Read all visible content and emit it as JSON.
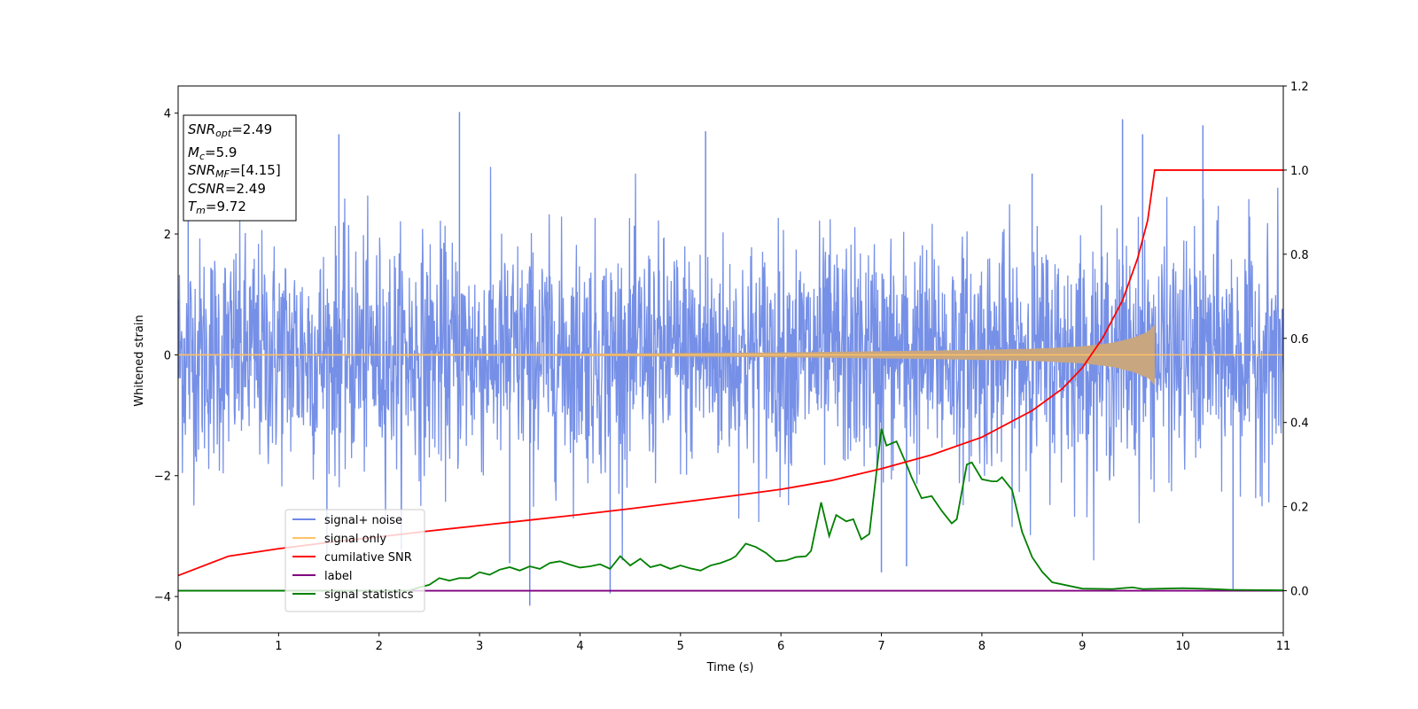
{
  "chart_data": {
    "type": "line",
    "xlabel": "Time (s)",
    "ylabel": "Whitened strain",
    "xlim": [
      0,
      11
    ],
    "ylim": [
      -4.6,
      4.45
    ],
    "y2lim": [
      -0.1,
      1.2
    ],
    "x_ticks": [
      0,
      1,
      2,
      3,
      4,
      5,
      6,
      7,
      8,
      9,
      10,
      11
    ],
    "y_ticks": [
      -4,
      -2,
      0,
      2,
      4
    ],
    "y2_ticks": [
      "0.0",
      "0.2",
      "0.4",
      "0.6",
      "0.8",
      "1.0",
      "1.2"
    ],
    "grid": false,
    "legend_position": "lower-left",
    "annotation": {
      "snr_opt_name": "SNR",
      "snr_opt_sub": "opt",
      "snr_opt_value": "=2.49",
      "mc_name": "M",
      "mc_sub": "c",
      "mc_value": "=5.9",
      "snr_mf_name": "SNR",
      "snr_mf_sub": "MF",
      "snr_mf_value": "=[4.15]",
      "csnr_name": "CSNR",
      "csnr_value": "=2.49",
      "tm_name": "T",
      "tm_sub": "m",
      "tm_value": "=9.72"
    },
    "series": [
      {
        "name": "signal+ noise",
        "axis": "left",
        "color": "#6f8ae6",
        "noise_std": 0.95,
        "x_range": [
          0,
          11
        ],
        "spikes": [
          [
            1.6,
            3.65
          ],
          [
            2.8,
            4.02
          ],
          [
            3.5,
            -4.15
          ],
          [
            4.3,
            -3.95
          ],
          [
            5.25,
            3.7
          ],
          [
            7.0,
            -3.6
          ],
          [
            7.25,
            -3.5
          ],
          [
            8.5,
            3.0
          ],
          [
            9.4,
            3.9
          ],
          [
            9.6,
            3.65
          ],
          [
            10.2,
            3.8
          ],
          [
            10.5,
            -3.9
          ],
          [
            3.3,
            -3.45
          ],
          [
            0.1,
            2.35
          ]
        ]
      },
      {
        "name": "signal only",
        "axis": "left",
        "color": "#ffc266",
        "fill_color": "#c8a67f",
        "amplitude_envelope": {
          "x": [
            0,
            4,
            6,
            7.5,
            8.5,
            9.0,
            9.3,
            9.5,
            9.65,
            9.72
          ],
          "y": [
            0.01,
            0.02,
            0.04,
            0.07,
            0.1,
            0.14,
            0.2,
            0.28,
            0.38,
            0.5
          ]
        },
        "end": 9.72
      },
      {
        "name": "cumilative SNR",
        "axis": "right",
        "color": "#ff0000",
        "x": [
          0,
          0.5,
          1,
          1.5,
          2,
          2.5,
          3,
          3.5,
          4,
          4.5,
          5,
          5.5,
          6,
          6.5,
          7,
          7.5,
          8,
          8.5,
          8.8,
          9.0,
          9.2,
          9.4,
          9.55,
          9.65,
          9.72,
          11
        ],
        "y": [
          0.036,
          0.082,
          0.1,
          0.115,
          0.128,
          0.142,
          0.155,
          0.168,
          0.181,
          0.195,
          0.21,
          0.225,
          0.241,
          0.262,
          0.29,
          0.323,
          0.365,
          0.428,
          0.48,
          0.53,
          0.6,
          0.69,
          0.79,
          0.88,
          1.0,
          1.0
        ]
      },
      {
        "name": "label",
        "axis": "right",
        "color": "#800080",
        "x": [
          0,
          11
        ],
        "y": [
          0.0,
          0.0
        ]
      },
      {
        "name": "signal statistics",
        "axis": "right",
        "color": "#008000",
        "x": [
          0,
          2.3,
          2.4,
          2.5,
          2.6,
          2.7,
          2.8,
          2.9,
          3.0,
          3.1,
          3.2,
          3.3,
          3.4,
          3.5,
          3.6,
          3.7,
          3.8,
          3.9,
          4.0,
          4.1,
          4.2,
          4.3,
          4.4,
          4.5,
          4.6,
          4.7,
          4.8,
          4.9,
          5.0,
          5.1,
          5.2,
          5.3,
          5.4,
          5.5,
          5.55,
          5.65,
          5.75,
          5.85,
          5.95,
          6.05,
          6.15,
          6.25,
          6.3,
          6.4,
          6.48,
          6.55,
          6.65,
          6.72,
          6.8,
          6.88,
          6.95,
          7.0,
          7.05,
          7.15,
          7.25,
          7.3,
          7.4,
          7.5,
          7.6,
          7.7,
          7.75,
          7.85,
          7.9,
          8.0,
          8.1,
          8.15,
          8.2,
          8.3,
          8.4,
          8.5,
          8.6,
          8.7,
          9.0,
          9.3,
          9.5,
          9.6,
          9.8,
          10.0,
          10.3,
          10.5,
          11.0
        ],
        "y": [
          0.0,
          0.0,
          0.008,
          0.014,
          0.03,
          0.024,
          0.03,
          0.03,
          0.044,
          0.038,
          0.05,
          0.056,
          0.048,
          0.058,
          0.052,
          0.066,
          0.07,
          0.062,
          0.055,
          0.058,
          0.063,
          0.052,
          0.082,
          0.06,
          0.076,
          0.056,
          0.062,
          0.052,
          0.06,
          0.053,
          0.048,
          0.06,
          0.066,
          0.075,
          0.082,
          0.112,
          0.104,
          0.09,
          0.07,
          0.072,
          0.08,
          0.082,
          0.095,
          0.21,
          0.13,
          0.18,
          0.165,
          0.17,
          0.122,
          0.135,
          0.28,
          0.385,
          0.345,
          0.355,
          0.3,
          0.27,
          0.22,
          0.225,
          0.19,
          0.16,
          0.17,
          0.3,
          0.305,
          0.265,
          0.26,
          0.26,
          0.27,
          0.24,
          0.14,
          0.08,
          0.045,
          0.02,
          0.005,
          0.004,
          0.008,
          0.004,
          0.005,
          0.006,
          0.004,
          0.002,
          0.001
        ]
      }
    ]
  }
}
